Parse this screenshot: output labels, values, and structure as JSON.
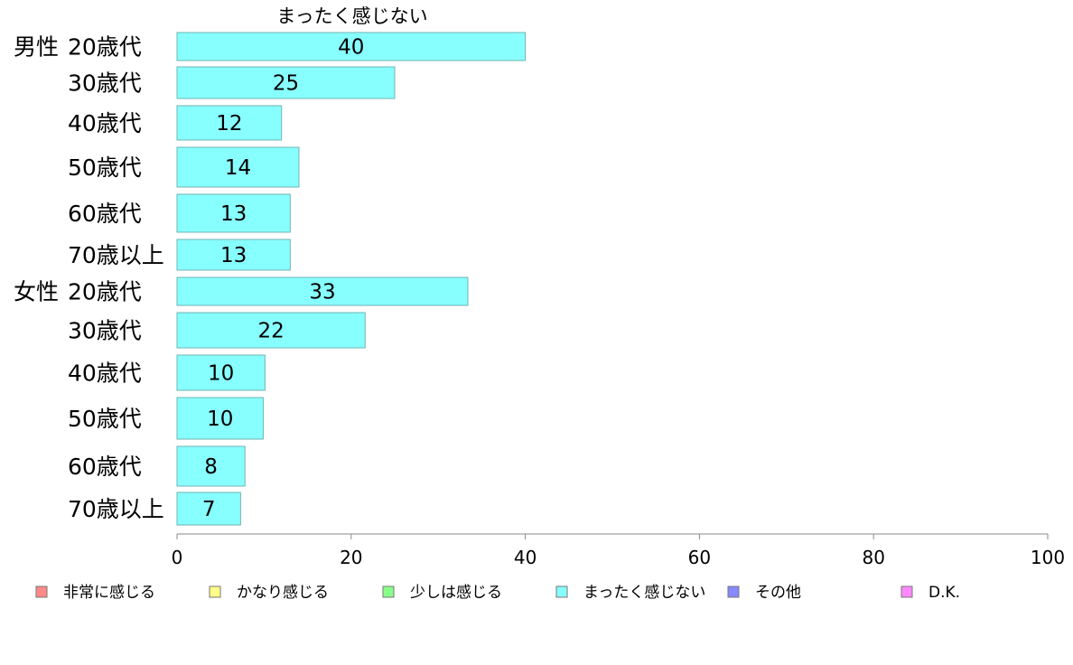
{
  "chart_data": {
    "type": "bar",
    "orientation": "horizontal",
    "title": "まったく感じない",
    "groups": [
      {
        "label": "男性",
        "categories": [
          "20歳代",
          "30歳代",
          "40歳代",
          "50歳代",
          "60歳代",
          "70歳以上"
        ]
      },
      {
        "label": "女性",
        "categories": [
          "20歳代",
          "30歳代",
          "40歳代",
          "50歳代",
          "60歳代",
          "70歳以上"
        ]
      }
    ],
    "categories": [
      "20歳代",
      "30歳代",
      "40歳代",
      "50歳代",
      "60歳代",
      "70歳以上",
      "20歳代",
      "30歳代",
      "40歳代",
      "50歳代",
      "60歳代",
      "70歳以上"
    ],
    "series": [
      {
        "name": "まったく感じない",
        "labels": [
          "40",
          "25",
          "12",
          "14",
          "13",
          "13",
          "33",
          "22",
          "10",
          "10",
          "8",
          "7"
        ],
        "values": [
          40,
          25,
          12,
          14,
          13,
          13,
          33.4,
          21.6,
          10.1,
          9.9,
          7.8,
          7.3
        ]
      }
    ],
    "xlim": [
      0,
      100
    ],
    "xticks": [
      "0",
      "20",
      "40",
      "60",
      "80",
      "100"
    ],
    "xlabel": "",
    "ylabel": "",
    "grid": false,
    "bar_color": "#88ffff",
    "bar_border": "#6fb3b3",
    "legend_position": "bottom",
    "legend": [
      {
        "name": "非常に感じる",
        "color": "#ff8888"
      },
      {
        "name": "かなり感じる",
        "color": "#ffff88"
      },
      {
        "name": "少しは感じる",
        "color": "#88ff88"
      },
      {
        "name": "まったく感じない",
        "color": "#88ffff"
      },
      {
        "name": "その他",
        "color": "#8888ff"
      },
      {
        "name": "D.K.",
        "color": "#ff88ff"
      }
    ]
  }
}
